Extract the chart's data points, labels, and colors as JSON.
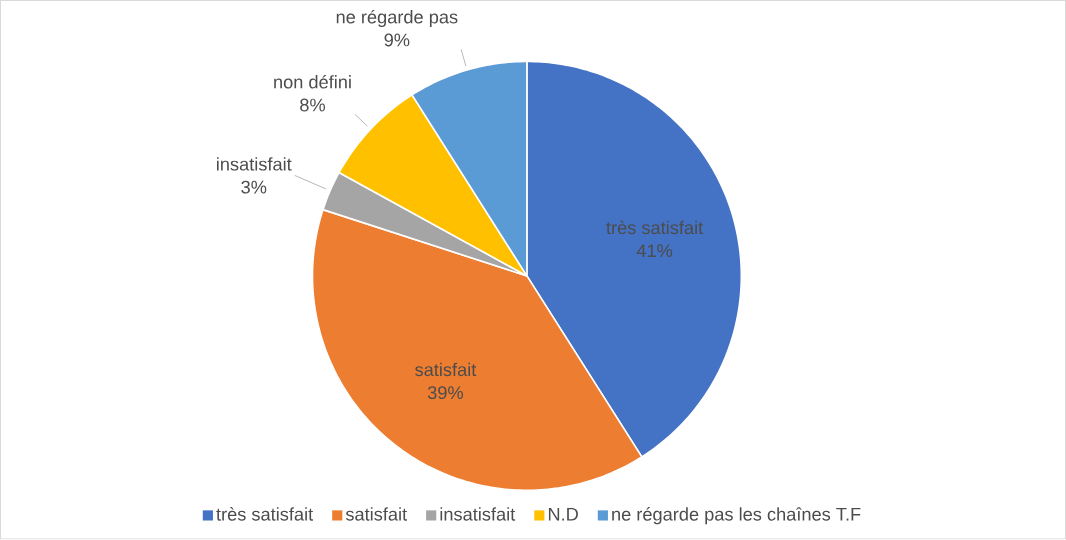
{
  "chart_data": {
    "type": "pie",
    "categories": [
      "très satisfait",
      "satisfait",
      "insatisfait",
      "N.D",
      "ne régarde pas les chaînes T.F"
    ],
    "values": [
      41,
      39,
      3,
      8,
      9
    ],
    "colors": [
      "#4472c4",
      "#ed7d31",
      "#a5a5a5",
      "#ffc000",
      "#5b9bd5"
    ],
    "value_labels": [
      "41%",
      "39%",
      "3%",
      "8%",
      "9%"
    ],
    "annotations": [
      {
        "text": "très satisfait",
        "x": "très satisfait"
      },
      {
        "text": "satisfait",
        "x": "satisfait"
      },
      {
        "text": "insatisfait",
        "x": "insatisfait"
      },
      {
        "text": "non défini",
        "x": "N.D"
      },
      {
        "text": "ne régarde pas",
        "x": "ne régarde pas les chaînes T.F"
      }
    ],
    "legend": "bottom"
  }
}
